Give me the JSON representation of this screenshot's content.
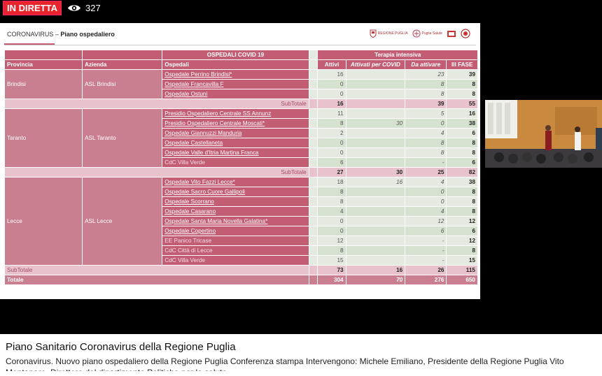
{
  "player": {
    "live_label": "IN DIRETTA",
    "viewer_count": "327",
    "icons": {
      "viewers": "eye-icon"
    }
  },
  "slide": {
    "header_prefix": "CORONAVIRUS – ",
    "header_title": "Piano ospedaliero",
    "logo_labels": [
      "REGIONE PUGLIA",
      "Puglia Salute"
    ],
    "table": {
      "group_header": "OSPEDALI COVID 19",
      "ti_header": "Terapia intensiva",
      "col_provincia": "Provincia",
      "col_azienda": "Azienda",
      "col_ospedali": "Ospedali",
      "col_attivi": "Attivi",
      "col_covid": "Attivati per COVID",
      "col_da_attivare": "Da attivare",
      "col_iii": "III FASE",
      "provinces": [
        {
          "provincia": "Brindisi",
          "azienda": "ASL Brindisi",
          "rows": [
            {
              "name": "Ospedale Perrino Brindisi*",
              "attivi": "16",
              "covid": "",
              "da": "23",
              "iii": "39"
            },
            {
              "name": "Ospedale Francavilla F",
              "attivi": "0",
              "covid": "",
              "da": "8",
              "iii": "8"
            },
            {
              "name": "Ospedale  Ostuni",
              "attivi": "0",
              "covid": "",
              "da": "8",
              "iii": "8"
            }
          ],
          "subtotal": {
            "label": "SubTotale",
            "attivi": "16",
            "covid": "",
            "da": "39",
            "iii": "55"
          }
        },
        {
          "provincia": "Taranto",
          "azienda": "ASL Taranto",
          "rows": [
            {
              "name": "Presidio Ospedaliero Centrale SS Annunz",
              "attivi": "11",
              "covid": "",
              "da": "5",
              "iii": "16"
            },
            {
              "name": "Presidio Ospedaliero Centrale Moscati*",
              "attivi": "8",
              "covid": "30",
              "da": "0",
              "iii": "38"
            },
            {
              "name": "Ospedale Giannuzzi Manduria",
              "attivi": "2",
              "covid": "",
              "da": "4",
              "iii": "6"
            },
            {
              "name": "Ospedale Castellaneta",
              "attivi": "0",
              "covid": "",
              "da": "8",
              "iii": "8"
            },
            {
              "name": "Ospedale Valle d'Itria Martina Franca",
              "attivi": "0",
              "covid": "",
              "da": "8",
              "iii": "8"
            },
            {
              "name": "CdC Villa Verde",
              "attivi": "6",
              "covid": "",
              "da": "-",
              "iii": "6"
            }
          ],
          "subtotal": {
            "label": "SubTotale",
            "attivi": "27",
            "covid": "30",
            "da": "25",
            "iii": "82"
          }
        },
        {
          "provincia": "Lecce",
          "azienda": "ASL Lecce",
          "rows": [
            {
              "name": "Ospedale Vito Fazzi Lecce*",
              "attivi": "18",
              "covid": "16",
              "da": "4",
              "iii": "38"
            },
            {
              "name": "Ospedale Sacro Cuore Gallipoli",
              "attivi": "8",
              "covid": "",
              "da": "0",
              "iii": "8"
            },
            {
              "name": "Ospedale Scorrano",
              "attivi": "8",
              "covid": "",
              "da": "0",
              "iii": "8"
            },
            {
              "name": "Ospedale Casarano",
              "attivi": "4",
              "covid": "",
              "da": "4",
              "iii": "8"
            },
            {
              "name": "Ospedale Santa Maria Novella Galatina*",
              "attivi": "0",
              "covid": "",
              "da": "12",
              "iii": "12"
            },
            {
              "name": "Ospedale Copertino",
              "attivi": "0",
              "covid": "",
              "da": "6",
              "iii": "6"
            },
            {
              "name": "EE Panico Tricase",
              "attivi": "12",
              "covid": "",
              "da": "-",
              "iii": "12"
            },
            {
              "name": "CdC Città di Lecce",
              "attivi": "8",
              "covid": "",
              "da": "-",
              "iii": "8"
            },
            {
              "name": "CdC Villa Verde",
              "attivi": "15",
              "covid": "",
              "da": "-",
              "iii": "15"
            }
          ],
          "subtotal": {
            "label": "SubTotale",
            "attivi": "73",
            "covid": "16",
            "da": "26",
            "iii": "115"
          }
        }
      ],
      "total": {
        "label": "Totale",
        "attivi": "304",
        "covid": "70",
        "da": "276",
        "iii": "650"
      }
    }
  },
  "video": {
    "title": "Piano Sanitario Coronavirus della Regione Puglia",
    "description": "Coronavirus. Nuovo piano ospedaliero della Regione Puglia Conferenza stampa Intervengono: Michele Emiliano, Presidente della Regione Puglia Vito Montanaro, Direttore del dipartimento Politiche per la salute"
  }
}
